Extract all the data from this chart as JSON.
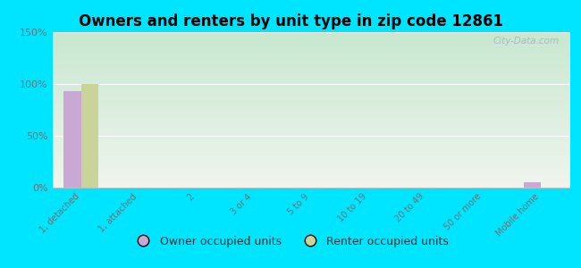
{
  "title": "Owners and renters by unit type in zip code 12861",
  "categories": [
    "1, detached",
    "1, attached",
    "2",
    "3 or 4",
    "5 to 9",
    "10 to 19",
    "20 to 49",
    "50 or more",
    "Mobile home"
  ],
  "owner_values": [
    93,
    0,
    0,
    0,
    0,
    0,
    0,
    0,
    5
  ],
  "renter_values": [
    100,
    0,
    0,
    0,
    0,
    0,
    0,
    0,
    0
  ],
  "owner_color": "#c9a8d4",
  "renter_color": "#c8d49a",
  "background_color": "#00e5ff",
  "grad_top": "#c8e8d0",
  "grad_bottom": "#f0f5ee",
  "ylim": [
    0,
    150
  ],
  "yticks": [
    0,
    50,
    100,
    150
  ],
  "ytick_labels": [
    "0%",
    "50%",
    "100%",
    "150%"
  ],
  "bar_width": 0.3,
  "watermark": "City-Data.com",
  "legend_owner": "Owner occupied units",
  "legend_renter": "Renter occupied units"
}
